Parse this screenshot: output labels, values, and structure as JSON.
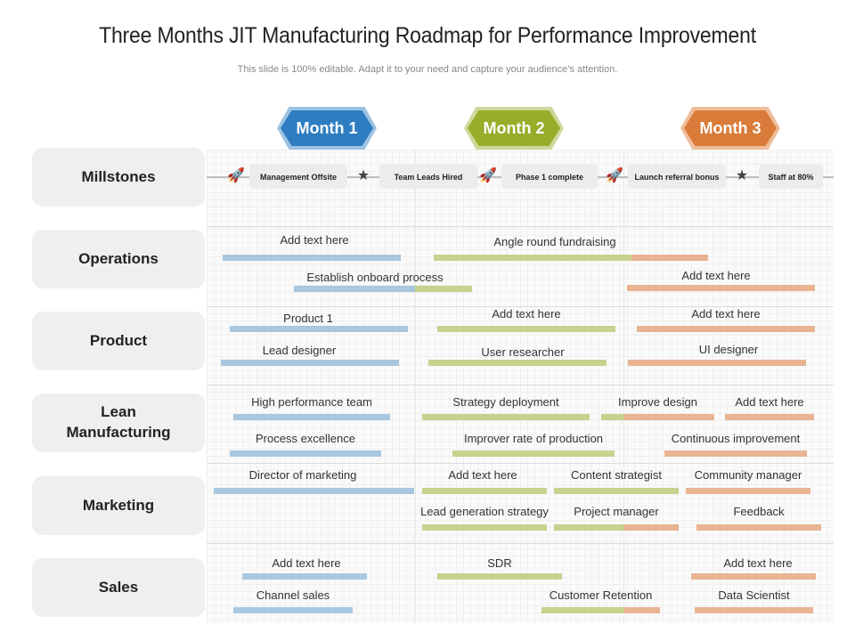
{
  "title": "Three Months JIT Manufacturing Roadmap for Performance Improvement",
  "subtitle": "This slide is 100% editable. Adapt it to your need and capture your audience’s attention.",
  "colors": {
    "blue": "#2e7dc1",
    "green": "#98ad2a",
    "orange": "#d97c3a",
    "bar_blue": "#a9c7df",
    "bar_green": "#c8d18e",
    "bar_orange": "#e8b492"
  },
  "months": [
    "Month 1",
    "Month 2",
    "Month 3"
  ],
  "rows": [
    "Millstones",
    "Operations",
    "Product",
    "Lean Manufacturing",
    "Marketing",
    "Sales"
  ],
  "milestones": [
    {
      "label": "Management Offsite",
      "icon": "rocket-icon"
    },
    {
      "label": "Team Leads Hired",
      "icon": "star-icon"
    },
    {
      "label": "Phase 1 complete",
      "icon": "rocket-icon"
    },
    {
      "label": "Launch referral bonus",
      "icon": "rocket-icon"
    },
    {
      "label": "Staff at 80%",
      "icon": "star-icon"
    }
  ],
  "tasks": {
    "operations": [
      "Add text here",
      "Angle round fundraising",
      "Establish onboard process",
      "Add text here"
    ],
    "product": [
      "Product 1",
      "Add text here",
      "Add text here",
      "Lead designer",
      "User researcher",
      "UI designer"
    ],
    "lean": [
      "High performance team",
      "Strategy deployment",
      "Improve design",
      "Add text here",
      "Process excellence",
      "Improver rate of production",
      "Continuous improvement"
    ],
    "marketing": [
      "Director of marketing",
      "Add text here",
      "Content strategist",
      "Community manager",
      "Lead generation strategy",
      "Project manager",
      "Feedback"
    ],
    "sales": [
      "Add text here",
      "SDR",
      "Add text here",
      "Channel sales",
      "Customer Retention",
      "Data Scientist"
    ]
  }
}
